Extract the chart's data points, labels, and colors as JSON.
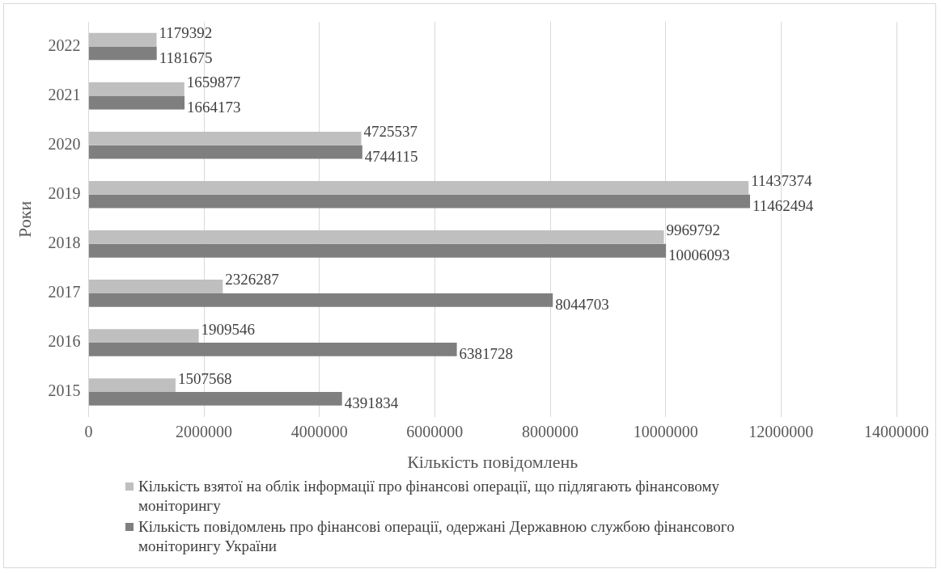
{
  "chart_data": {
    "type": "bar",
    "orientation": "horizontal",
    "xlabel": "Кількість повідомлень",
    "ylabel": "Роки",
    "categories": [
      "2022",
      "2021",
      "2020",
      "2019",
      "2018",
      "2017",
      "2016",
      "2015"
    ],
    "series": [
      {
        "name": "Кількість взятої на облік інформації про фінансові операції, що підлягають фінансовому моніторингу",
        "color": "#bfbfbf",
        "values": [
          1179392,
          1659877,
          4725537,
          11437374,
          9969792,
          2326287,
          1909546,
          1507568
        ]
      },
      {
        "name": "Кількість повідомлень про фінансові операції, одержані Державною службою фінансового моніторингу України",
        "color": "#7f7f7f",
        "values": [
          1181675,
          1664173,
          4744115,
          11462494,
          10006093,
          8044703,
          6381728,
          4391834
        ]
      }
    ],
    "xlim": [
      0,
      14000000
    ],
    "xticks": [
      0,
      2000000,
      4000000,
      6000000,
      8000000,
      10000000,
      12000000,
      14000000
    ],
    "grid": "x",
    "legend": "bottom",
    "data_labels": true
  }
}
